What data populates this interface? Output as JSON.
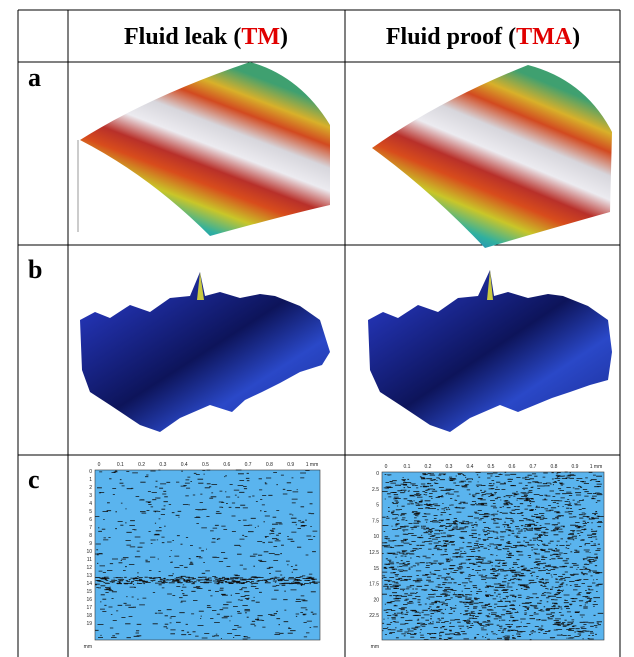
{
  "table": {
    "header": [
      {
        "before": "Fluid leak (",
        "highlight": "TM",
        "after": ")"
      },
      {
        "before": "Fluid proof (",
        "highlight": "TMA",
        "after": ")"
      }
    ],
    "rows": [
      {
        "label": "a"
      },
      {
        "label": "b"
      },
      {
        "label": "c",
        "maps": [
          {
            "x_ticks": [
              "0",
              "0.1",
              "0.2",
              "0.3",
              "0.4",
              "0.5",
              "0.6",
              "0.7",
              "0.8",
              "0.9",
              "1 mm"
            ],
            "y_ticks": [
              "0",
              "1",
              "2",
              "3",
              "4",
              "5",
              "6",
              "7",
              "8",
              "9",
              "10",
              "11",
              "12",
              "13",
              "14",
              "15",
              "16",
              "17",
              "18",
              "19"
            ],
            "unit": "mm"
          },
          {
            "x_ticks": [
              "0",
              "0.1",
              "0.2",
              "0.3",
              "0.4",
              "0.5",
              "0.6",
              "0.7",
              "0.8",
              "0.9",
              "1 mm"
            ],
            "y_ticks": [
              "0",
              "2.5",
              "5",
              "7.5",
              "10",
              "12.5",
              "15",
              "17.5",
              "20",
              "22.5"
            ],
            "unit": "mm"
          }
        ]
      }
    ]
  }
}
